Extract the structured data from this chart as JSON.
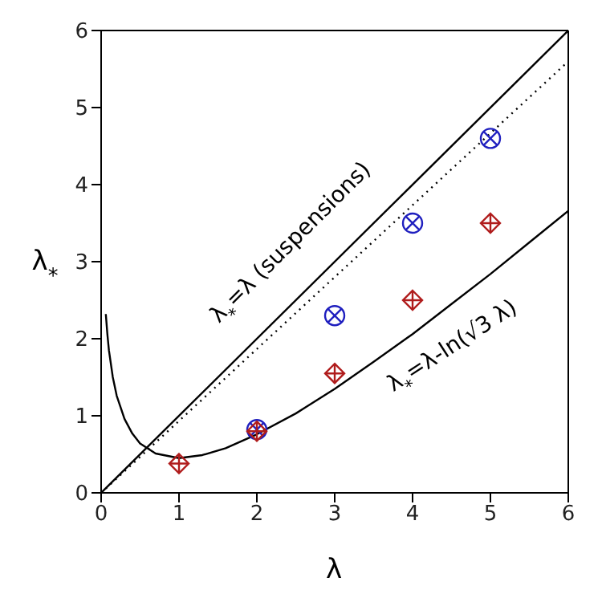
{
  "chart_data": {
    "type": "scatter",
    "xlabel": "λ",
    "ylabel": "λ$_{*}$",
    "xlim": [
      0,
      6
    ],
    "ylim": [
      0,
      6
    ],
    "xticks": [
      0,
      1,
      2,
      3,
      4,
      5,
      6
    ],
    "yticks": [
      0,
      1,
      2,
      3,
      4,
      5,
      6
    ],
    "series": [
      {
        "type": "line",
        "color": "#000000",
        "line_style": "solid",
        "marker": "none",
        "x": [
          0,
          6
        ],
        "values": [
          0,
          6
        ]
      },
      {
        "type": "line",
        "color": "#000000",
        "line_style": "dotted",
        "marker": "none",
        "x": [
          0,
          6
        ],
        "values": [
          0,
          5.6
        ]
      },
      {
        "type": "line",
        "color": "#000000",
        "line_style": "solid",
        "marker": "none",
        "x": [
          0.06,
          0.08,
          0.1,
          0.15,
          0.2,
          0.3,
          0.4,
          0.5,
          0.7,
          1,
          1.3,
          1.6,
          2,
          2.5,
          3,
          3.5,
          4,
          4.5,
          5,
          5.5,
          6
        ],
        "values": [
          2.32,
          2.06,
          1.85,
          1.5,
          1.26,
          0.96,
          0.77,
          0.64,
          0.51,
          0.45,
          0.49,
          0.58,
          0.76,
          1.03,
          1.35,
          1.7,
          2.06,
          2.45,
          2.84,
          3.25,
          3.66
        ]
      },
      {
        "color": "#1f1fbf",
        "marker": "circle",
        "x": [
          2,
          3,
          4,
          5
        ],
        "values": [
          0.82,
          2.3,
          3.5,
          4.6
        ]
      },
      {
        "color": "#b01c1c",
        "marker": "diamond",
        "x": [
          1,
          2,
          3,
          4,
          5
        ],
        "values": [
          0.38,
          0.8,
          1.55,
          2.5,
          3.5
        ]
      }
    ],
    "annotations": [
      "λ$_{*}$=λ (suspensions)",
      "λ$_{*}$=λ-ln(√3 λ)"
    ]
  }
}
